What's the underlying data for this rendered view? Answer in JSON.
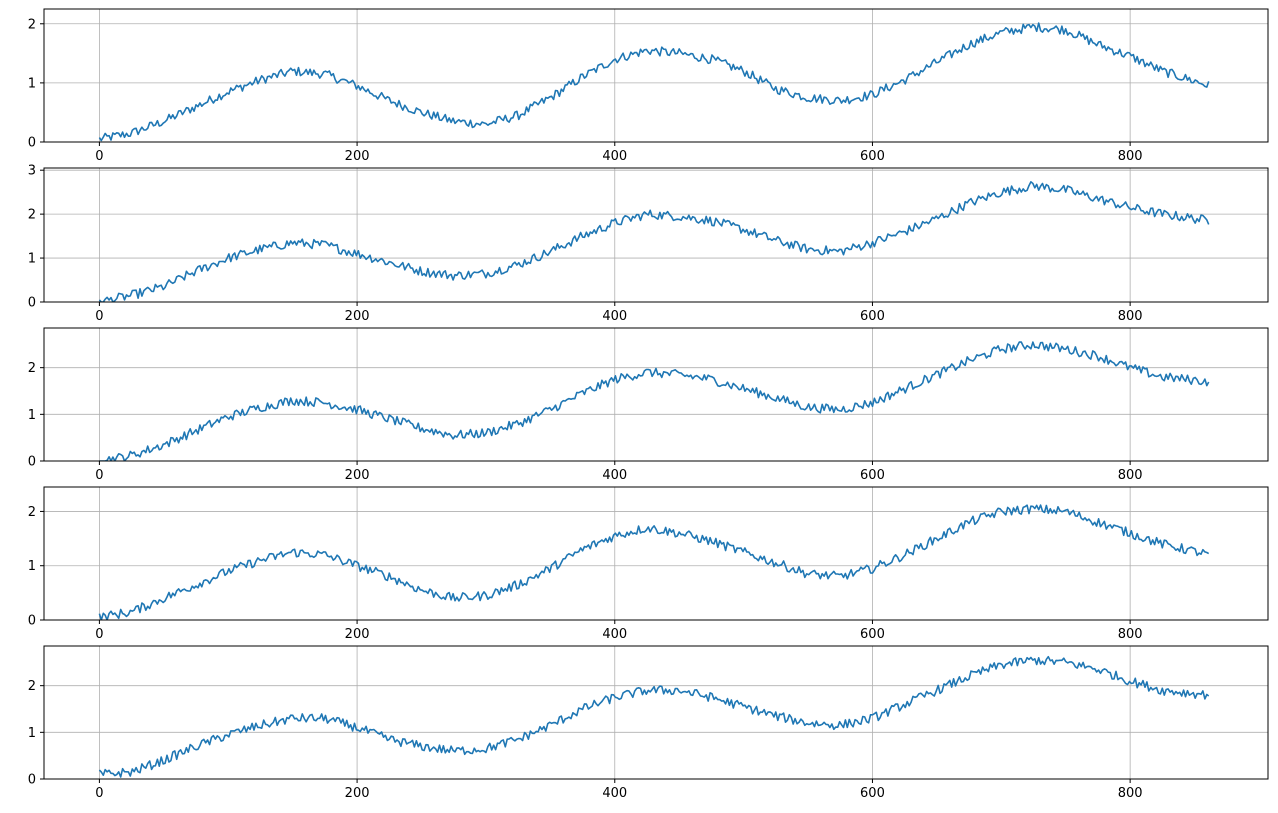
{
  "colors": {
    "series": "#1f77b4",
    "grid": "#b0b0b0",
    "axis": "#000000"
  },
  "chart_data": [
    {
      "type": "line",
      "title": "",
      "xlabel": "",
      "ylabel": "",
      "grid": true,
      "xlim": [
        -43,
        907
      ],
      "ylim": [
        0,
        2.25
      ],
      "xticks": [
        0,
        200,
        400,
        600,
        800
      ],
      "yticks": [
        0,
        1,
        2
      ],
      "x": [
        0,
        25,
        50,
        75,
        100,
        125,
        150,
        175,
        200,
        225,
        250,
        275,
        300,
        325,
        350,
        375,
        400,
        425,
        450,
        475,
        500,
        525,
        550,
        575,
        600,
        625,
        650,
        675,
        700,
        725,
        750,
        775,
        800,
        825,
        862
      ],
      "series": [
        {
          "values": [
            0.05,
            0.15,
            0.35,
            0.6,
            0.85,
            1.05,
            1.2,
            1.15,
            0.95,
            0.7,
            0.5,
            0.35,
            0.3,
            0.45,
            0.75,
            1.1,
            1.4,
            1.55,
            1.5,
            1.4,
            1.2,
            0.9,
            0.75,
            0.7,
            0.8,
            1.05,
            1.35,
            1.65,
            1.85,
            1.95,
            1.9,
            1.65,
            1.45,
            1.2,
            0.95
          ]
        }
      ]
    },
    {
      "type": "line",
      "title": "",
      "xlabel": "",
      "ylabel": "",
      "grid": true,
      "xlim": [
        -43,
        907
      ],
      "ylim": [
        0,
        3.05
      ],
      "xticks": [
        0,
        200,
        400,
        600,
        800
      ],
      "yticks": [
        0,
        1,
        2,
        3
      ],
      "x": [
        0,
        25,
        50,
        75,
        100,
        125,
        150,
        175,
        200,
        225,
        250,
        275,
        300,
        325,
        350,
        375,
        400,
        425,
        450,
        475,
        500,
        525,
        550,
        575,
        600,
        625,
        650,
        675,
        700,
        725,
        750,
        775,
        800,
        825,
        862
      ],
      "series": [
        {
          "values": [
            0.0,
            0.15,
            0.35,
            0.7,
            1.0,
            1.2,
            1.35,
            1.3,
            1.1,
            0.9,
            0.7,
            0.6,
            0.65,
            0.85,
            1.15,
            1.5,
            1.8,
            2.0,
            1.95,
            1.85,
            1.65,
            1.4,
            1.2,
            1.15,
            1.35,
            1.6,
            1.9,
            2.25,
            2.5,
            2.65,
            2.55,
            2.35,
            2.15,
            2.0,
            1.85
          ]
        }
      ]
    },
    {
      "type": "line",
      "title": "",
      "xlabel": "",
      "ylabel": "",
      "grid": true,
      "xlim": [
        -43,
        907
      ],
      "ylim": [
        0,
        2.85
      ],
      "xticks": [
        0,
        200,
        400,
        600,
        800
      ],
      "yticks": [
        0,
        1,
        2
      ],
      "x": [
        0,
        25,
        50,
        75,
        100,
        125,
        150,
        175,
        200,
        225,
        250,
        275,
        300,
        325,
        350,
        375,
        400,
        425,
        450,
        475,
        500,
        525,
        550,
        575,
        600,
        625,
        650,
        675,
        700,
        725,
        750,
        775,
        800,
        825,
        862
      ],
      "series": [
        {
          "values": [
            0.0,
            0.12,
            0.35,
            0.65,
            0.95,
            1.15,
            1.3,
            1.25,
            1.1,
            0.9,
            0.7,
            0.55,
            0.6,
            0.8,
            1.1,
            1.45,
            1.75,
            1.9,
            1.85,
            1.75,
            1.55,
            1.35,
            1.15,
            1.1,
            1.25,
            1.55,
            1.85,
            2.15,
            2.4,
            2.5,
            2.4,
            2.25,
            2.0,
            1.8,
            1.7
          ]
        }
      ]
    },
    {
      "type": "line",
      "title": "",
      "xlabel": "",
      "ylabel": "",
      "grid": true,
      "xlim": [
        -43,
        907
      ],
      "ylim": [
        0,
        2.45
      ],
      "xticks": [
        0,
        200,
        400,
        600,
        800
      ],
      "yticks": [
        0,
        1,
        2
      ],
      "x": [
        0,
        25,
        50,
        75,
        100,
        125,
        150,
        175,
        200,
        225,
        250,
        275,
        300,
        325,
        350,
        375,
        400,
        425,
        450,
        475,
        500,
        525,
        550,
        575,
        600,
        625,
        650,
        675,
        700,
        725,
        750,
        775,
        800,
        825,
        862
      ],
      "series": [
        {
          "values": [
            0.05,
            0.15,
            0.4,
            0.65,
            0.9,
            1.1,
            1.25,
            1.2,
            1.0,
            0.8,
            0.55,
            0.4,
            0.45,
            0.65,
            0.95,
            1.3,
            1.55,
            1.7,
            1.6,
            1.45,
            1.25,
            1.05,
            0.85,
            0.8,
            0.95,
            1.2,
            1.5,
            1.8,
            2.0,
            2.05,
            2.0,
            1.8,
            1.6,
            1.4,
            1.2
          ]
        }
      ]
    },
    {
      "type": "line",
      "title": "",
      "xlabel": "",
      "ylabel": "",
      "grid": true,
      "xlim": [
        -43,
        907
      ],
      "ylim": [
        0,
        2.85
      ],
      "xticks": [
        0,
        200,
        400,
        600,
        800
      ],
      "yticks": [
        0,
        1,
        2
      ],
      "x": [
        0,
        25,
        50,
        75,
        100,
        125,
        150,
        175,
        200,
        225,
        250,
        275,
        300,
        325,
        350,
        375,
        400,
        425,
        450,
        475,
        500,
        525,
        550,
        575,
        600,
        625,
        650,
        675,
        700,
        725,
        750,
        775,
        800,
        825,
        862
      ],
      "series": [
        {
          "values": [
            0.1,
            0.15,
            0.4,
            0.7,
            0.95,
            1.15,
            1.3,
            1.3,
            1.1,
            0.85,
            0.7,
            0.6,
            0.65,
            0.85,
            1.15,
            1.5,
            1.75,
            1.9,
            1.9,
            1.75,
            1.55,
            1.35,
            1.2,
            1.15,
            1.3,
            1.6,
            1.9,
            2.2,
            2.45,
            2.55,
            2.5,
            2.35,
            2.1,
            1.9,
            1.8
          ]
        }
      ]
    }
  ]
}
